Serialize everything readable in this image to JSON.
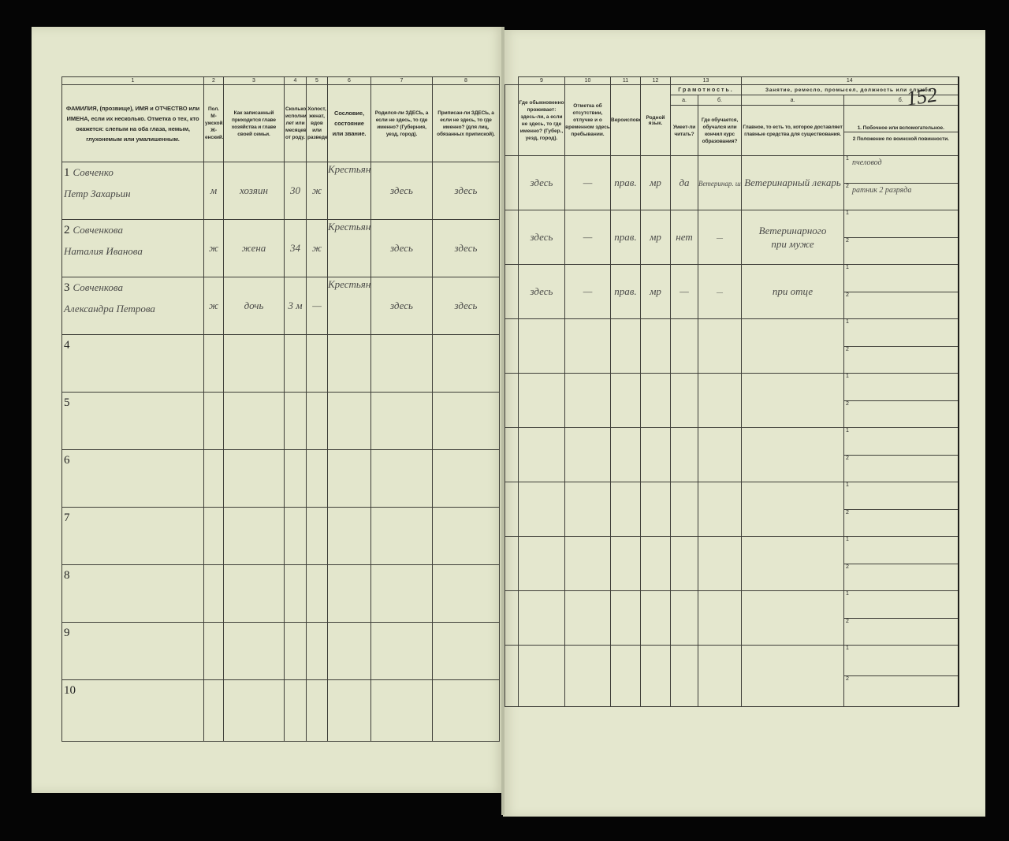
{
  "left": {
    "col_numbers": [
      "1",
      "2",
      "3",
      "4",
      "5",
      "6",
      "7",
      "8"
    ],
    "headers": [
      "ФАМИЛИЯ, (прозвище), ИМЯ и ОТЧЕСТВО или ИМЕНА, если их несколько. Отметка о тех, кто окажется: слепым на оба глаза, немым, глухонемым или умалишенным.",
      "Пол. М-ужской. Ж-енский.",
      "Как записанный приходится главе хозяйства и главе своей семьи.",
      "Сколько исполнилось лет или месяцев от роду.",
      "Холост, женат, вдов или разведен.",
      "Сословие, состояние или звание.",
      "Родился-ли ЗДЕСЬ, а если не здесь, то где именно? (Губерния, уезд, город).",
      "Приписан-ли ЗДЕСЬ, а если не здесь, то где именно? (для лиц, обязанных припиской)."
    ]
  },
  "right": {
    "col_numbers": [
      "9",
      "10",
      "11",
      "12",
      "13",
      "14"
    ],
    "headers": {
      "c9": "Где обыкновенно проживает: здесь-ли, а если не здесь, то где именно? (Губер., уезд, город).",
      "c10": "Отметка об отсутствии, отлучке и о временном здесь пребывании.",
      "c11": "Вероисповедание.",
      "c12": "Родной язык.",
      "c13": "Грамотность.",
      "c13a_letter": "а.",
      "c13b_letter": "б.",
      "c13a": "Умеет-ли читать?",
      "c13b": "Где обучается, обучался или кончил курс образования?",
      "c14": "Занятие, ремесло, промысел, должность или служба.",
      "c14a_letter": "а.",
      "c14b_letter": "б.",
      "c14a": "Главное, то есть то, которое доставляет главные средства для существования.",
      "c14b1": "1. Побочное или вспомогательное.",
      "c14b2": "2 Положение по воинской повинности."
    }
  },
  "stamp": "152",
  "sub_labels": [
    "1",
    "2"
  ],
  "rows": [
    {
      "n": "1",
      "surname": "Совченко",
      "name": "Петр Захарьин",
      "sex": "м",
      "relation": "хозяин",
      "age": "30",
      "marital": "ж",
      "estate": "Крестьян",
      "born": "здесь",
      "registered": "здесь",
      "resides": "здесь",
      "absence": "—",
      "religion": "прав.",
      "language": "мр",
      "literate": "да",
      "education": "Ветеринар. школа",
      "occupation": "Ветеринарный лекарь",
      "occ_side": "пчеловод",
      "military": "ратник 2 разряда"
    },
    {
      "n": "2",
      "surname": "Совченкова",
      "name": "Наталия Иванова",
      "sex": "ж",
      "relation": "жена",
      "age": "34",
      "marital": "ж",
      "estate": "Крестьян",
      "born": "здесь",
      "registered": "здесь",
      "resides": "здесь",
      "absence": "—",
      "religion": "прав.",
      "language": "мр",
      "literate": "нет",
      "education": "—",
      "occupation": "Ветеринарного",
      "occ_side": "",
      "military": "",
      "occupation2": "при муже"
    },
    {
      "n": "3",
      "surname": "Совченкова",
      "name": "Александра Петрова",
      "sex": "ж",
      "relation": "дочь",
      "age": "3 м",
      "marital": "—",
      "estate": "Крестьян",
      "born": "здесь",
      "registered": "здесь",
      "resides": "здесь",
      "absence": "—",
      "religion": "прав.",
      "language": "мр",
      "literate": "—",
      "education": "—",
      "occupation": "при отце",
      "occ_side": "",
      "military": ""
    },
    {
      "n": "4"
    },
    {
      "n": "5"
    },
    {
      "n": "6"
    },
    {
      "n": "7"
    },
    {
      "n": "8"
    },
    {
      "n": "9"
    },
    {
      "n": "10"
    }
  ]
}
